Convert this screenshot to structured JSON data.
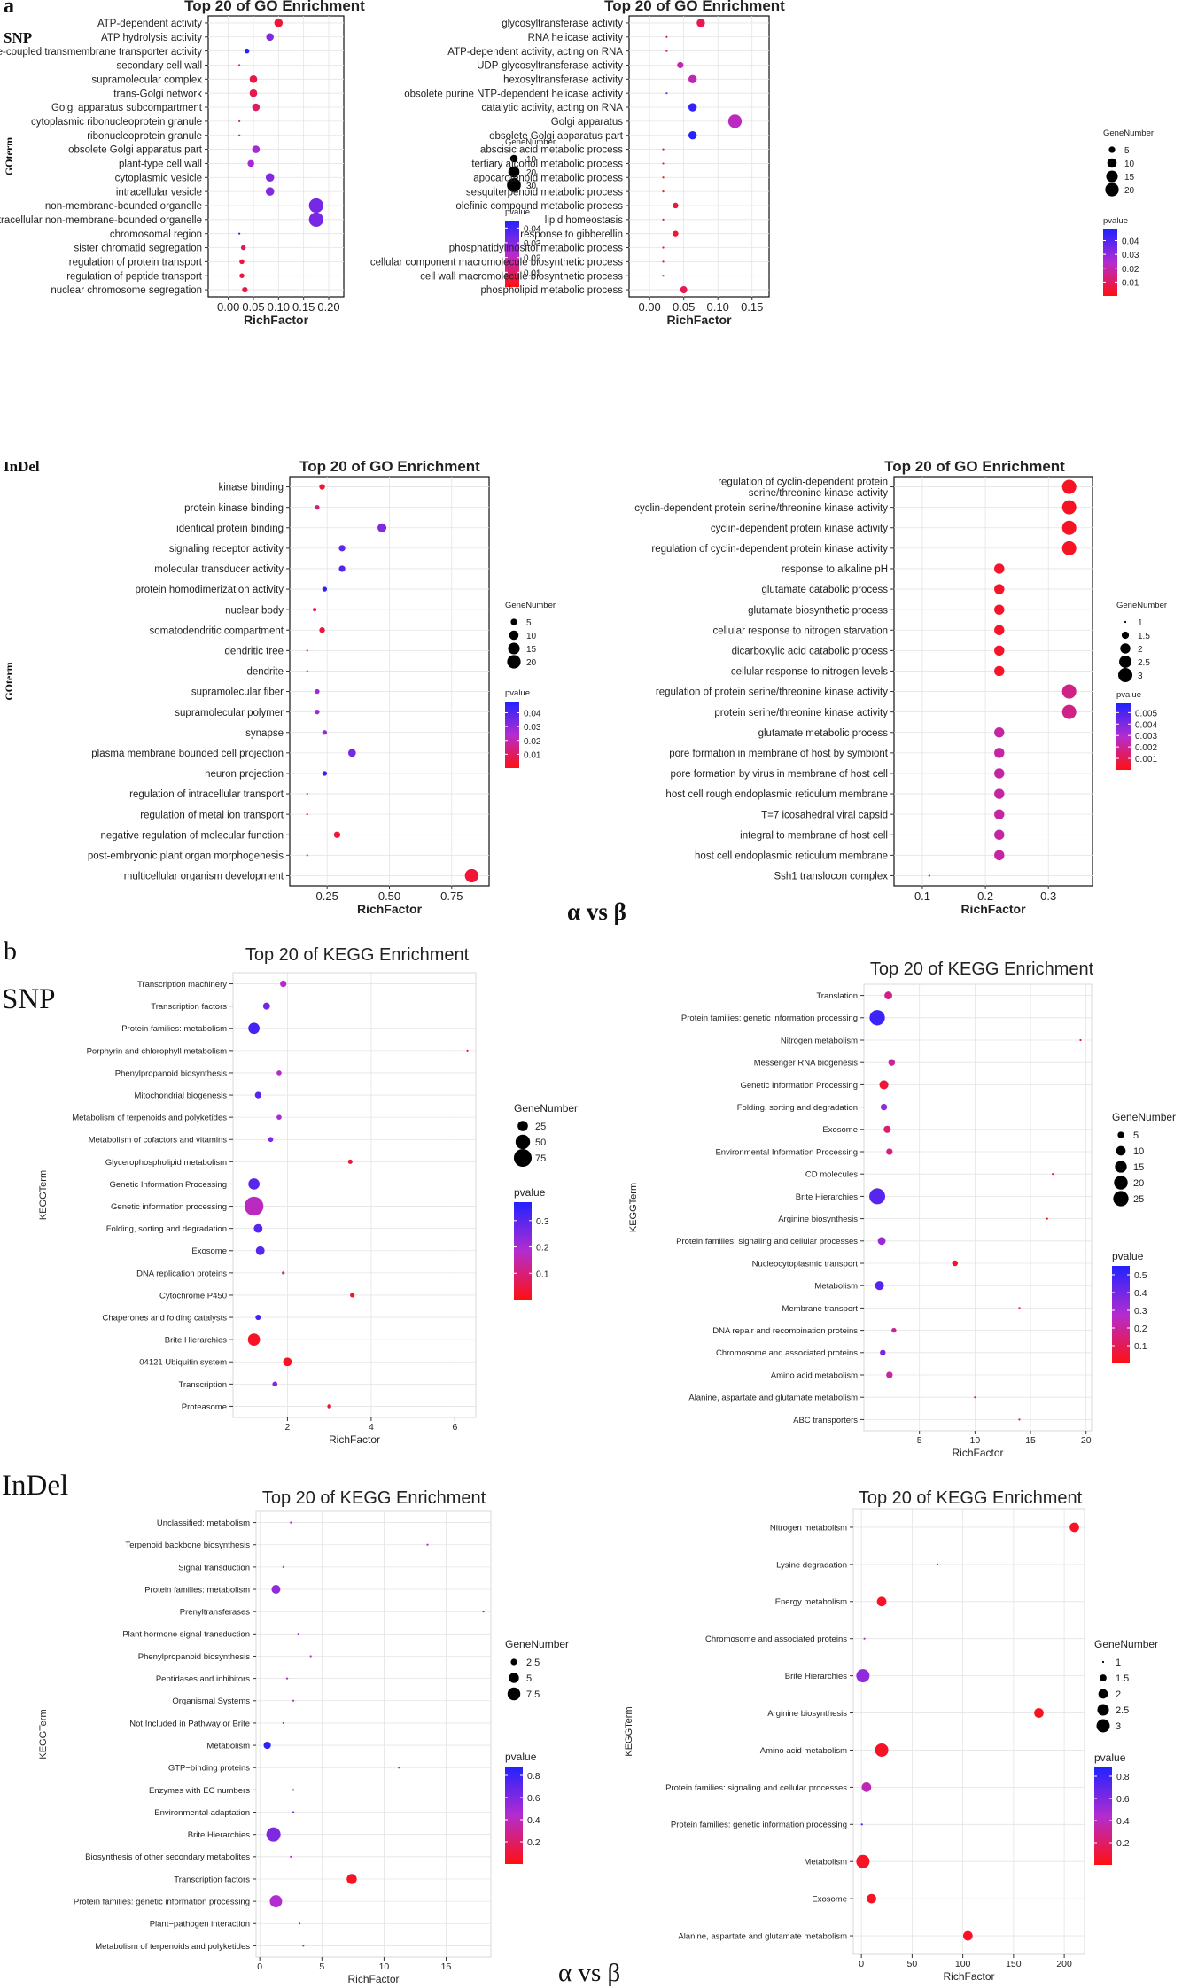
{
  "labels": {
    "panel_a": "a",
    "panel_b": "b",
    "snp_a": "SNP",
    "indel_a": "InDel",
    "snp_b": "SNP",
    "indel_b": "InDel",
    "alpha_beta_a": "α vs β",
    "alpha_beta_b": "α vs β"
  },
  "chart_data": [
    {
      "id": "go_snp_1",
      "type": "scatter",
      "style": "go",
      "title": "Top 20 of GO Enrichment",
      "xlabel": "RichFactor",
      "ylabel": "GOterm",
      "xlim": [
        -0.04,
        0.23
      ],
      "xticks": [
        0.0,
        0.05,
        0.1,
        0.15,
        0.2
      ],
      "xtick_labels": [
        "0.00",
        "0.05",
        "0.10",
        "0.15",
        "0.20"
      ],
      "size_title": "GeneNumber",
      "size_legend": [
        10,
        20,
        30
      ],
      "size_range": [
        2,
        35
      ],
      "color_title": "pvalue",
      "color_range": [
        0.0,
        0.045
      ],
      "color_ticks": [
        0.04,
        0.03,
        0.02,
        0.01
      ],
      "color_tick_labels": [
        "0.04",
        "0.03",
        "0.02",
        "0.01"
      ],
      "terms": [
        "ATP-dependent activity",
        "ATP hydrolysis activity",
        "ATPase-coupled transmembrane transporter activity",
        "secondary cell wall",
        "supramolecular complex",
        "trans-Golgi network",
        "Golgi apparatus subcompartment",
        "cytoplasmic ribonucleoprotein granule",
        "ribonucleoprotein granule",
        "obsolete Golgi apparatus part",
        "plant-type cell wall",
        "cytoplasmic vesicle",
        "intracellular vesicle",
        "non-membrane-bounded organelle",
        "intracellular non-membrane-bounded organelle",
        "chromosomal region",
        "sister chromatid segregation",
        "regulation of protein transport",
        "regulation of peptide transport",
        "nuclear chromosome segregation"
      ],
      "x": [
        0.1,
        0.083,
        0.037,
        0.022,
        0.05,
        0.05,
        0.055,
        0.022,
        0.022,
        0.055,
        0.045,
        0.083,
        0.083,
        0.175,
        0.175,
        0.022,
        0.03,
        0.027,
        0.027,
        0.033
      ],
      "size": [
        12,
        10,
        5,
        2,
        10,
        10,
        10,
        2,
        2,
        10,
        8,
        12,
        12,
        32,
        32,
        2,
        5,
        5,
        5,
        6
      ],
      "pvalue": [
        0.005,
        0.03,
        0.044,
        0.005,
        0.006,
        0.007,
        0.01,
        0.012,
        0.012,
        0.025,
        0.025,
        0.03,
        0.03,
        0.032,
        0.032,
        0.045,
        0.008,
        0.006,
        0.006,
        0.006
      ]
    },
    {
      "id": "go_ab_1",
      "type": "scatter",
      "style": "go",
      "title": "Top 20 of GO Enrichment",
      "xlabel": "RichFactor",
      "ylabel": "",
      "xlim": [
        -0.03,
        0.175
      ],
      "xticks": [
        0.0,
        0.05,
        0.1,
        0.15
      ],
      "xtick_labels": [
        "0.00",
        "0.05",
        "0.10",
        "0.15"
      ],
      "size_title": "GeneNumber",
      "size_legend": [
        5,
        10,
        15,
        20
      ],
      "size_range": [
        1,
        22
      ],
      "color_title": "pvalue",
      "color_range": [
        0.0,
        0.048
      ],
      "color_ticks": [
        0.04,
        0.03,
        0.02,
        0.01
      ],
      "color_tick_labels": [
        "0.04",
        "0.03",
        "0.02",
        "0.01"
      ],
      "terms": [
        "glycosyltransferase activity",
        "RNA helicase activity",
        "ATP-dependent activity, acting on RNA",
        "UDP-glycosyltransferase activity",
        "hexosyltransferase activity",
        "obsolete purine NTP-dependent helicase activity",
        "catalytic activity, acting on RNA",
        "Golgi apparatus",
        "obsolete Golgi apparatus part",
        "abscisic acid metabolic process",
        "tertiary alcohol metabolic process",
        "apocarotenoid metabolic process",
        "sesquiterpenoid metabolic process",
        "olefinic compound metabolic process",
        "lipid homeostasis",
        "response to gibberellin",
        "phosphatidylinositol metabolic process",
        "cellular component macromolecule biosynthetic process",
        "cell wall macromolecule biosynthetic process",
        "phospholipid metabolic process"
      ],
      "x": [
        0.075,
        0.025,
        0.025,
        0.045,
        0.063,
        0.025,
        0.063,
        0.125,
        0.063,
        0.02,
        0.02,
        0.02,
        0.02,
        0.038,
        0.02,
        0.038,
        0.02,
        0.02,
        0.02,
        0.05
      ],
      "size": [
        8,
        1,
        1,
        5,
        8,
        1,
        8,
        20,
        8,
        1,
        1,
        1,
        1,
        4,
        1,
        4,
        1,
        1,
        1,
        6
      ],
      "pvalue": [
        0.008,
        0.01,
        0.01,
        0.02,
        0.02,
        0.035,
        0.045,
        0.022,
        0.047,
        0.003,
        0.003,
        0.003,
        0.003,
        0.005,
        0.003,
        0.005,
        0.003,
        0.003,
        0.003,
        0.008
      ]
    },
    {
      "id": "go_snp_2",
      "type": "scatter",
      "style": "go",
      "title": "Top 20 of GO Enrichment",
      "xlabel": "RichFactor",
      "ylabel": "GOterm",
      "xlim": [
        0.1,
        0.9
      ],
      "xticks": [
        0.25,
        0.5,
        0.75
      ],
      "xtick_labels": [
        "0.25",
        "0.50",
        "0.75"
      ],
      "size_title": "GeneNumber",
      "size_legend": [
        5,
        10,
        15,
        20
      ],
      "size_range": [
        1,
        22
      ],
      "color_title": "pvalue",
      "color_range": [
        0.0,
        0.048
      ],
      "color_ticks": [
        0.04,
        0.03,
        0.02,
        0.01
      ],
      "color_tick_labels": [
        "0.04",
        "0.03",
        "0.02",
        "0.01"
      ],
      "terms": [
        "kinase binding",
        "protein kinase binding",
        "identical protein binding",
        "signaling receptor activity",
        "molecular transducer activity",
        "protein homodimerization activity",
        "nuclear body",
        "somatodendritic compartment",
        "dendritic tree",
        "dendrite",
        "supramolecular fiber",
        "supramolecular polymer",
        "synapse",
        "plasma membrane bounded cell projection",
        "neuron projection",
        "regulation of intracellular transport",
        "regulation of metal ion transport",
        "negative regulation of molecular function",
        "post-embryonic plant organ morphogenesis",
        "multicellular organism development"
      ],
      "x": [
        0.23,
        0.21,
        0.47,
        0.31,
        0.31,
        0.24,
        0.2,
        0.23,
        0.17,
        0.17,
        0.21,
        0.21,
        0.24,
        0.35,
        0.24,
        0.17,
        0.17,
        0.29,
        0.17,
        0.83
      ],
      "size": [
        4,
        3,
        9,
        5,
        5,
        3,
        2,
        4,
        1,
        1,
        3,
        3,
        3,
        7,
        3,
        1,
        1,
        5,
        1,
        20
      ],
      "pvalue": [
        0.005,
        0.014,
        0.032,
        0.038,
        0.04,
        0.046,
        0.008,
        0.006,
        0.009,
        0.009,
        0.028,
        0.028,
        0.028,
        0.034,
        0.045,
        0.005,
        0.005,
        0.005,
        0.005,
        0.005
      ]
    },
    {
      "id": "go_ab_2",
      "type": "scatter",
      "style": "go",
      "title": "Top 20 of GO Enrichment",
      "xlabel": "RichFactor",
      "ylabel": "",
      "xlim": [
        0.055,
        0.37
      ],
      "xticks": [
        0.1,
        0.2,
        0.3
      ],
      "xtick_labels": [
        "0.1",
        "0.2",
        "0.3"
      ],
      "size_title": "GeneNumber",
      "size_legend": [
        1.0,
        1.5,
        2.0,
        2.5,
        3.0
      ],
      "size_range": [
        1,
        3
      ],
      "color_title": "pvalue",
      "color_range": [
        0.0,
        0.0058
      ],
      "color_ticks": [
        0.005,
        0.004,
        0.003,
        0.002,
        0.001
      ],
      "color_tick_labels": [
        "0.005",
        "0.004",
        "0.003",
        "0.002",
        "0.001"
      ],
      "terms": [
        "regulation of cyclin-dependent protein|serine/threonine kinase activity",
        "cyclin-dependent protein serine/threonine kinase activity",
        "cyclin-dependent protein kinase activity",
        "regulation of cyclin-dependent protein kinase activity",
        "response to alkaline pH",
        "glutamate catabolic process",
        "glutamate biosynthetic process",
        "cellular response to nitrogen starvation",
        "dicarboxylic acid catabolic process",
        "cellular response to nitrogen levels",
        "regulation of protein serine/threonine kinase activity",
        "protein serine/threonine kinase activity",
        "glutamate metabolic process",
        "pore formation in membrane of host by symbiont",
        "pore formation by virus in membrane of host cell",
        "host cell rough endoplasmic reticulum membrane",
        "T=7 icosahedral viral capsid",
        "integral to membrane of host cell",
        "host cell endoplasmic reticulum membrane",
        "Ssh1 translocon complex"
      ],
      "x": [
        0.333,
        0.333,
        0.333,
        0.333,
        0.222,
        0.222,
        0.222,
        0.222,
        0.222,
        0.222,
        0.333,
        0.333,
        0.222,
        0.222,
        0.222,
        0.222,
        0.222,
        0.222,
        0.222,
        0.111
      ],
      "size": [
        3,
        3,
        3,
        3,
        2,
        2,
        2,
        2,
        2,
        2,
        3,
        3,
        2,
        2,
        2,
        2,
        2,
        2,
        2,
        1
      ],
      "pvalue": [
        0.0003,
        0.0003,
        0.0003,
        0.0003,
        0.0004,
        0.0004,
        0.0004,
        0.0004,
        0.0004,
        0.0004,
        0.0018,
        0.0018,
        0.0022,
        0.0022,
        0.0022,
        0.0022,
        0.0022,
        0.0022,
        0.0022,
        0.0055
      ]
    },
    {
      "id": "kegg_snp_1",
      "type": "scatter",
      "style": "kegg",
      "title": "Top 20 of KEGG Enrichment",
      "xlabel": "RichFactor",
      "ylabel": "KEGGTerm",
      "xlim": [
        0.7,
        6.5
      ],
      "xticks": [
        2,
        4,
        6
      ],
      "xtick_labels": [
        "2",
        "4",
        "6"
      ],
      "size_title": "GeneNumber",
      "size_legend": [
        25,
        50,
        75
      ],
      "size_range": [
        1,
        90
      ],
      "color_title": "pvalue",
      "color_range": [
        0.0,
        0.37
      ],
      "color_ticks": [
        0.3,
        0.2,
        0.1
      ],
      "color_tick_labels": [
        "0.3",
        "0.2",
        "0.1"
      ],
      "terms": [
        "Transcription machinery",
        "Transcription factors",
        "Protein families: metabolism",
        "Porphyrin and chlorophyll metabolism",
        "Phenylpropanoid biosynthesis",
        "Mitochondrial biogenesis",
        "Metabolism of terpenoids and polyketides",
        "Metabolism of cofactors and vitamins",
        "Glycerophospholipid metabolism",
        "Genetic Information Processing",
        "Genetic information processing",
        "Folding, sorting and degradation",
        "Exosome",
        "DNA replication proteins",
        "Cytochrome P450",
        "Chaperones and folding catalysts",
        "Brite Hierarchies",
        "04121 Ubiquitin system",
        "Transcription",
        "Proteasome"
      ],
      "x": [
        1.9,
        1.5,
        1.2,
        6.3,
        1.8,
        1.3,
        1.8,
        1.6,
        3.5,
        1.2,
        1.2,
        1.3,
        1.35,
        1.9,
        3.55,
        1.3,
        1.2,
        2.0,
        1.7,
        3.0
      ],
      "size": [
        10,
        12,
        30,
        1,
        6,
        10,
        6,
        6,
        5,
        30,
        85,
        18,
        18,
        2,
        5,
        7,
        35,
        18,
        6,
        4
      ],
      "pvalue": [
        0.18,
        0.27,
        0.33,
        0.05,
        0.18,
        0.3,
        0.2,
        0.25,
        0.04,
        0.3,
        0.17,
        0.3,
        0.3,
        0.13,
        0.02,
        0.33,
        0.02,
        0.02,
        0.25,
        0.02
      ]
    },
    {
      "id": "kegg_ab_1",
      "type": "scatter",
      "style": "kegg",
      "title": "Top 20 of KEGG Enrichment",
      "xlabel": "RichFactor",
      "ylabel": "KEGGTerm",
      "xlim": [
        0,
        20.5
      ],
      "xticks": [
        5,
        10,
        15,
        20
      ],
      "xtick_labels": [
        "5",
        "10",
        "15",
        "20"
      ],
      "size_title": "GeneNumber",
      "size_legend": [
        5,
        10,
        15,
        20,
        25
      ],
      "size_range": [
        1,
        27
      ],
      "color_title": "pvalue",
      "color_range": [
        0.0,
        0.55
      ],
      "color_ticks": [
        0.5,
        0.4,
        0.3,
        0.2,
        0.1
      ],
      "color_tick_labels": [
        "0.5",
        "0.4",
        "0.3",
        "0.2",
        "0.1"
      ],
      "terms": [
        "Translation",
        "Protein families: genetic information processing",
        "Nitrogen metabolism",
        "Messenger RNA biogenesis",
        "Genetic Information Processing",
        "Folding, sorting and degradation",
        "Exosome",
        "Environmental Information Processing",
        "CD molecules",
        "Brite Hierarchies",
        "Arginine biosynthesis",
        "Protein families: signaling and cellular processes",
        "Nucleocytoplasmic transport",
        "Metabolism",
        "Membrane transport",
        "DNA repair and recombination proteins",
        "Chromosome and associated proteins",
        "Amino acid metabolism",
        "Alanine, aspartate and glutamate metabolism",
        "ABC transporters"
      ],
      "x": [
        2.2,
        1.2,
        19.5,
        2.5,
        1.8,
        1.8,
        2.1,
        2.3,
        17.0,
        1.2,
        16.5,
        1.6,
        8.2,
        1.4,
        14.0,
        2.7,
        1.7,
        2.3,
        10.0,
        14.0
      ],
      "size": [
        7,
        25,
        1,
        5,
        9,
        5,
        6,
        5,
        1,
        28,
        1,
        7,
        4,
        9,
        1,
        3,
        4,
        5,
        1,
        1
      ],
      "pvalue": [
        0.17,
        0.5,
        0.05,
        0.19,
        0.06,
        0.33,
        0.13,
        0.17,
        0.04,
        0.45,
        0.02,
        0.33,
        0.03,
        0.45,
        0.05,
        0.2,
        0.38,
        0.2,
        0.07,
        0.04
      ]
    },
    {
      "id": "kegg_snp_2",
      "type": "scatter",
      "style": "kegg",
      "title": "Top 20 of KEGG Enrichment",
      "xlabel": "RichFactor",
      "ylabel": "KEGGTerm",
      "xlim": [
        -0.3,
        18.6
      ],
      "xticks": [
        0,
        5,
        10,
        15
      ],
      "xtick_labels": [
        "0",
        "5",
        "10",
        "15"
      ],
      "size_title": "GeneNumber",
      "size_legend": [
        2.5,
        5.0,
        7.5
      ],
      "size_range": [
        1,
        9
      ],
      "color_title": "pvalue",
      "color_range": [
        0.0,
        0.88
      ],
      "color_ticks": [
        0.8,
        0.6,
        0.4,
        0.2
      ],
      "color_tick_labels": [
        "0.8",
        "0.6",
        "0.4",
        "0.2"
      ],
      "terms": [
        "Unclassified: metabolism",
        "Terpenoid backbone biosynthesis",
        "Signal transduction",
        "Protein families: metabolism",
        "Prenyltransferases",
        "Plant hormone signal transduction",
        "Phenylpropanoid biosynthesis",
        "Peptidases and inhibitors",
        "Organismal Systems",
        "Not Included in Pathway or Brite",
        "Metabolism",
        "GTP−binding proteins",
        "Enzymes with EC numbers",
        "Environmental adaptation",
        "Brite Hierarchies",
        "Biosynthesis of other secondary metabolites",
        "Transcription factors",
        "Protein families: genetic information processing",
        "Plant−pathogen interaction",
        "Metabolism of terpenoids and polyketides"
      ],
      "x": [
        2.5,
        13.5,
        1.9,
        1.3,
        18.0,
        3.1,
        4.1,
        2.2,
        2.7,
        1.9,
        0.6,
        11.2,
        2.7,
        2.7,
        1.1,
        2.5,
        7.4,
        1.3,
        3.2,
        3.5
      ],
      "size": [
        1,
        1,
        1,
        4,
        1,
        1,
        1,
        1,
        1,
        1,
        3,
        1,
        1,
        1,
        9,
        1,
        5,
        7,
        1,
        1
      ],
      "pvalue": [
        0.45,
        0.4,
        0.5,
        0.55,
        0.15,
        0.5,
        0.4,
        0.45,
        0.45,
        0.55,
        0.85,
        0.2,
        0.45,
        0.55,
        0.6,
        0.45,
        0.05,
        0.45,
        0.55,
        0.5
      ]
    },
    {
      "id": "kegg_ab_2",
      "type": "scatter",
      "style": "kegg",
      "title": "Top 20 of KEGG Enrichment",
      "xlabel": "RichFactor",
      "ylabel": "KEGGTerm",
      "xlim": [
        -8,
        220
      ],
      "xticks": [
        0,
        50,
        100,
        150,
        200
      ],
      "xtick_labels": [
        "0",
        "50",
        "100",
        "150",
        "200"
      ],
      "size_title": "GeneNumber",
      "size_legend": [
        1.0,
        1.5,
        2.0,
        2.5,
        3.0
      ],
      "size_range": [
        1,
        3
      ],
      "color_title": "pvalue",
      "color_range": [
        0.0,
        0.88
      ],
      "color_ticks": [
        0.8,
        0.6,
        0.4,
        0.2
      ],
      "color_tick_labels": [
        "0.8",
        "0.6",
        "0.4",
        "0.2"
      ],
      "terms": [
        "Nitrogen metabolism",
        "Lysine degradation",
        "Energy metabolism",
        "Chromosome and associated proteins",
        "Brite Hierarchies",
        "Arginine biosynthesis",
        "Amino acid metabolism",
        "Protein families: signaling and cellular processes",
        "Protein families: genetic information processing",
        "Metabolism",
        "Exosome",
        "Alanine, aspartate and glutamate metabolism"
      ],
      "x": [
        210,
        75,
        20,
        3,
        1.5,
        175,
        20,
        5,
        0.5,
        1.5,
        10,
        105
      ],
      "size": [
        2,
        1,
        2,
        1,
        3,
        2,
        3,
        2,
        1,
        3,
        2,
        2
      ],
      "pvalue": [
        0.05,
        0.05,
        0.05,
        0.45,
        0.55,
        0.03,
        0.05,
        0.38,
        0.85,
        0.05,
        0.05,
        0.05
      ]
    }
  ]
}
